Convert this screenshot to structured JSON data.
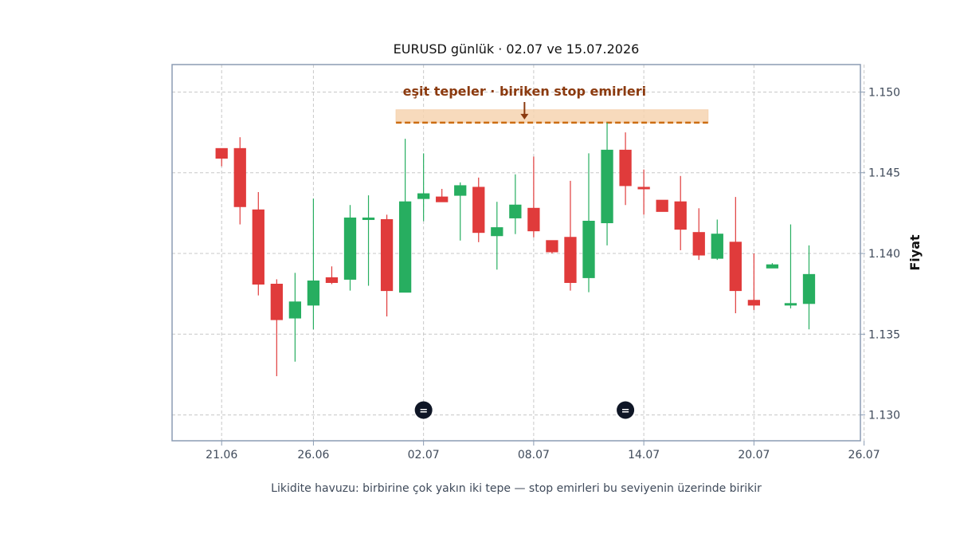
{
  "chart_data": {
    "type": "candlestick",
    "title": "EURUSD günlük · 02.07 ve 15.07.2026",
    "ylabel": "Fiyat",
    "xlabel": "",
    "ylim": [
      1.1284,
      1.1517
    ],
    "xlim": [
      18.3,
      55.8
    ],
    "x_is_day_index": "ticks at 21.06, 26.06, 02.07, 08.07, 14.07, 20.07, 26.07",
    "yticks": [
      {
        "value": 1.13,
        "label": "1.130"
      },
      {
        "value": 1.135,
        "label": "1.135"
      },
      {
        "value": 1.14,
        "label": "1.140"
      },
      {
        "value": 1.145,
        "label": "1.145"
      },
      {
        "value": 1.15,
        "label": "1.150"
      }
    ],
    "xticks": [
      {
        "value": 21,
        "label": "21.06"
      },
      {
        "value": 26,
        "label": "26.06"
      },
      {
        "value": 32,
        "label": "02.07"
      },
      {
        "value": 38,
        "label": "08.07"
      },
      {
        "value": 44,
        "label": "14.07"
      },
      {
        "value": 50,
        "label": "20.07"
      },
      {
        "value": 56,
        "label": "26.07"
      }
    ],
    "candles": [
      {
        "x": 21,
        "open": 1.1465,
        "high": 1.1465,
        "low": 1.1454,
        "close": 1.1459
      },
      {
        "x": 22,
        "open": 1.1465,
        "high": 1.1472,
        "low": 1.1418,
        "close": 1.1429
      },
      {
        "x": 23,
        "open": 1.1427,
        "high": 1.1438,
        "low": 1.1374,
        "close": 1.1381
      },
      {
        "x": 24,
        "open": 1.1381,
        "high": 1.1384,
        "low": 1.1324,
        "close": 1.1359
      },
      {
        "x": 25,
        "open": 1.136,
        "high": 1.1388,
        "low": 1.1333,
        "close": 1.137
      },
      {
        "x": 26,
        "open": 1.1368,
        "high": 1.1434,
        "low": 1.1353,
        "close": 1.1383
      },
      {
        "x": 27,
        "open": 1.1385,
        "high": 1.1392,
        "low": 1.1381,
        "close": 1.1382
      },
      {
        "x": 28,
        "open": 1.1384,
        "high": 1.143,
        "low": 1.1377,
        "close": 1.1422
      },
      {
        "x": 29,
        "open": 1.1421,
        "high": 1.1436,
        "low": 1.138,
        "close": 1.1422
      },
      {
        "x": 30,
        "open": 1.1421,
        "high": 1.1424,
        "low": 1.1361,
        "close": 1.1377
      },
      {
        "x": 31,
        "open": 1.1376,
        "high": 1.1471,
        "low": 1.1376,
        "close": 1.1432
      },
      {
        "x": 32,
        "open": 1.1434,
        "high": 1.1462,
        "low": 1.142,
        "close": 1.1437
      },
      {
        "x": 33,
        "open": 1.1435,
        "high": 1.144,
        "low": 1.1432,
        "close": 1.1432
      },
      {
        "x": 34,
        "open": 1.1436,
        "high": 1.1444,
        "low": 1.1408,
        "close": 1.1442
      },
      {
        "x": 35,
        "open": 1.1441,
        "high": 1.1447,
        "low": 1.1407,
        "close": 1.1413
      },
      {
        "x": 36,
        "open": 1.1411,
        "high": 1.1432,
        "low": 1.139,
        "close": 1.1416
      },
      {
        "x": 37,
        "open": 1.1422,
        "high": 1.1449,
        "low": 1.1412,
        "close": 1.143
      },
      {
        "x": 38,
        "open": 1.1428,
        "high": 1.146,
        "low": 1.141,
        "close": 1.1414
      },
      {
        "x": 39,
        "open": 1.1408,
        "high": 1.1408,
        "low": 1.14,
        "close": 1.1401
      },
      {
        "x": 40,
        "open": 1.141,
        "high": 1.1445,
        "low": 1.1377,
        "close": 1.1382
      },
      {
        "x": 41,
        "open": 1.1385,
        "high": 1.1462,
        "low": 1.1376,
        "close": 1.142
      },
      {
        "x": 42,
        "open": 1.1419,
        "high": 1.1481,
        "low": 1.1405,
        "close": 1.1464
      },
      {
        "x": 43,
        "open": 1.1464,
        "high": 1.1475,
        "low": 1.143,
        "close": 1.1442
      },
      {
        "x": 44,
        "open": 1.1441,
        "high": 1.1452,
        "low": 1.1424,
        "close": 1.144
      },
      {
        "x": 45,
        "open": 1.1433,
        "high": 1.1433,
        "low": 1.1426,
        "close": 1.1426
      },
      {
        "x": 46,
        "open": 1.1432,
        "high": 1.1448,
        "low": 1.1402,
        "close": 1.1415
      },
      {
        "x": 47,
        "open": 1.1413,
        "high": 1.1428,
        "low": 1.1396,
        "close": 1.1399
      },
      {
        "x": 48,
        "open": 1.1397,
        "high": 1.1421,
        "low": 1.1396,
        "close": 1.1412
      },
      {
        "x": 49,
        "open": 1.1407,
        "high": 1.1435,
        "low": 1.1363,
        "close": 1.1377
      },
      {
        "x": 50,
        "open": 1.1371,
        "high": 1.14,
        "low": 1.1365,
        "close": 1.1368
      },
      {
        "x": 51,
        "open": 1.1391,
        "high": 1.1394,
        "low": 1.1391,
        "close": 1.1393
      },
      {
        "x": 52,
        "open": 1.1369,
        "high": 1.1418,
        "low": 1.1366,
        "close": 1.1369
      },
      {
        "x": 53,
        "open": 1.1369,
        "high": 1.1405,
        "low": 1.1353,
        "close": 1.1387
      }
    ],
    "zone": {
      "x_start": 31,
      "x_end": 48,
      "y_low": 1.1481,
      "y_high": 1.1489,
      "level": 1.1481
    },
    "annotation": {
      "text": "eşit tepeler · biriken stop emirleri",
      "x": 37.5,
      "y": 1.1481
    },
    "markers": [
      {
        "x": 32,
        "y": 1.1303,
        "label": "="
      },
      {
        "x": 43,
        "y": 1.1303,
        "label": "="
      }
    ],
    "caption": "Likidite havuzu: birbirine çok yakın iki tepe — stop emirleri bu seviyenin üzerinde birikir",
    "colors": {
      "up": "#27ae60",
      "down": "#e03b3b",
      "zone_fill": "#f6d3b0",
      "zone_line": "#cc6d12",
      "annotation": "#8b3a0f",
      "marker": "#0f1626",
      "grid": "#c8c8c8",
      "frame": "#8b9cb3"
    },
    "grid": true
  }
}
